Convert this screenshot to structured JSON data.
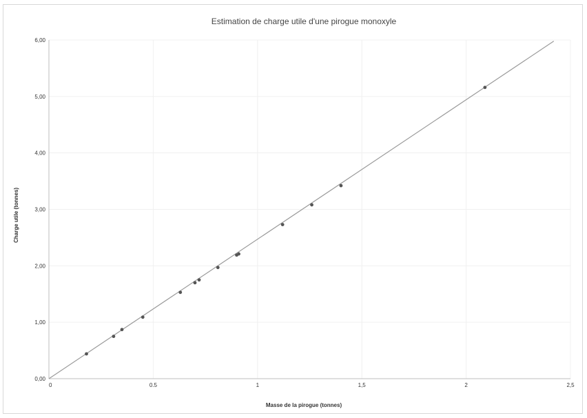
{
  "chart_data": {
    "type": "scatter",
    "title": "Estimation de charge utile d'une pirogue monoxyle",
    "xlabel": "Masse de la pirogue (tonnes)",
    "ylabel": "Charge utile (tonnes)",
    "xlim": [
      0,
      2.5
    ],
    "ylim": [
      0,
      6
    ],
    "x_ticks": [
      0,
      0.5,
      1,
      1.5,
      2,
      2.5
    ],
    "x_tick_labels": [
      "0",
      "0.5",
      "1",
      "1,5",
      "2",
      "2,5"
    ],
    "y_ticks": [
      0,
      1,
      2,
      3,
      4,
      5,
      6
    ],
    "y_tick_labels": [
      "0,00",
      "1,00",
      "2,00",
      "3,00",
      "4,00",
      "5,00",
      "6,00"
    ],
    "grid": true,
    "legend": "none",
    "series": [
      {
        "x": [
          0.18,
          0.31,
          0.35,
          0.45,
          0.63,
          0.7,
          0.72,
          0.81,
          0.9,
          0.91,
          1.12,
          1.26,
          1.4,
          2.09
        ],
        "y": [
          0.44,
          0.75,
          0.87,
          1.09,
          1.53,
          1.7,
          1.75,
          1.97,
          2.19,
          2.21,
          2.73,
          3.08,
          3.42,
          5.16
        ]
      }
    ],
    "trendline": {
      "x": [
        0,
        2.42
      ],
      "y": [
        0,
        5.98
      ]
    },
    "colors": {
      "points": "#555555",
      "trendline": "#9a9a9a",
      "gridlines": "#f0f0f0",
      "axes": "#bdbdbd"
    }
  }
}
